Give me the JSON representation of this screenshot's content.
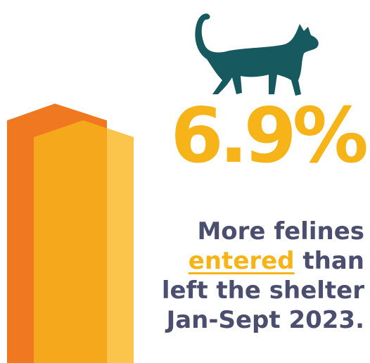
{
  "colors": {
    "entered": "#f07820",
    "left": "#f6a81c",
    "left_light": "#fbc44a",
    "stat": "#f6b418",
    "text": "#4b4e6e",
    "cat": "#16595e"
  },
  "icon": "cat-icon",
  "headline": {
    "value": "6.9%"
  },
  "caption": {
    "line1": "More felines",
    "highlight": "entered",
    "line2_rest": " than",
    "line3": "left the shelter",
    "line4": "Jan-Sept 2023."
  },
  "chart_data": {
    "type": "bar",
    "categories": [
      "entered",
      "left"
    ],
    "values": [
      106.9,
      100
    ],
    "ylim": [
      0,
      110
    ],
    "grid": false,
    "legend": "none"
  }
}
